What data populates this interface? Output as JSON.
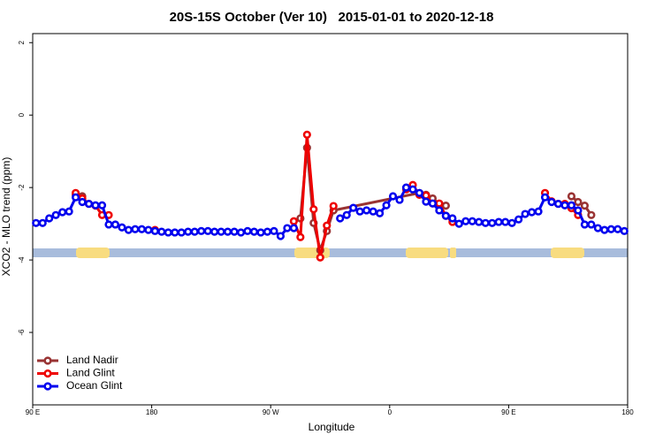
{
  "chart_data": {
    "type": "line",
    "title": "20S-15S October (Ver 10)   2015-01-01 to 2020-12-18",
    "xlabel": "Longitude",
    "ylabel": "XCO2 - MLO trend (ppm)",
    "xlim": [
      90,
      540
    ],
    "xticks": [
      {
        "value": 90,
        "label": "90 E"
      },
      {
        "value": 180,
        "label": "180"
      },
      {
        "value": 270,
        "label": "90 W"
      },
      {
        "value": 360,
        "label": "0"
      },
      {
        "value": 450,
        "label": "90 E"
      },
      {
        "value": 540,
        "label": "180"
      }
    ],
    "ylim": [
      -8,
      2.25
    ],
    "yticks": [
      -6,
      -4,
      -2,
      0,
      2
    ],
    "legend": "bottom-left",
    "series": [
      {
        "name": "Land Nadir",
        "color": "#993333",
        "x": [
          122.5,
          127.5,
          132.5,
          287.5,
          292.5,
          297.5,
          302.5,
          307.5,
          312.5,
          317.5,
          382.5,
          387.5,
          392.5,
          397.5,
          402.5,
          492.5,
          497.5,
          502.5,
          507.5,
          512.5
        ],
        "values": [
          -2.2,
          -2.24,
          null,
          null,
          -2.85,
          -0.9,
          -2.98,
          -3.73,
          -3.2,
          -2.63,
          -2.15,
          -2.2,
          -2.3,
          -2.45,
          -2.5,
          null,
          -2.24,
          -2.4,
          -2.5,
          -2.76
        ]
      },
      {
        "name": "Land Glint",
        "color": "#ee0000",
        "x": [
          122.5,
          127.5,
          132.5,
          137.5,
          142.5,
          147.5,
          152.5,
          182.5,
          187.5,
          287.5,
          292.5,
          297.5,
          302.5,
          307.5,
          312.5,
          317.5,
          322.5,
          372.5,
          377.5,
          382.5,
          387.5,
          392.5,
          397.5,
          402.5,
          407.5,
          412.5,
          477.5,
          482.5,
          487.5,
          492.5,
          497.5,
          502.5
        ],
        "values": [
          -2.15,
          -2.3,
          -2.45,
          -2.5,
          -2.76,
          -2.76,
          null,
          -3.17,
          null,
          -2.93,
          -3.37,
          -0.54,
          -2.6,
          -3.93,
          -3.05,
          -2.51,
          null,
          -2.05,
          -1.93,
          -2.2,
          -2.22,
          -2.44,
          -2.44,
          -2.78,
          -2.95,
          null,
          -2.15,
          -2.38,
          -2.45,
          -2.45,
          -2.57,
          -2.76
        ]
      },
      {
        "name": "Ocean Glint",
        "color": "#0000ee",
        "x": [
          92.5,
          97.5,
          102.5,
          107.5,
          112.5,
          117.5,
          122.5,
          127.5,
          132.5,
          137.5,
          142.5,
          147.5,
          152.5,
          157.5,
          162.5,
          167.5,
          172.5,
          177.5,
          182.5,
          187.5,
          192.5,
          197.5,
          202.5,
          207.5,
          212.5,
          217.5,
          222.5,
          227.5,
          232.5,
          237.5,
          242.5,
          247.5,
          252.5,
          257.5,
          262.5,
          267.5,
          272.5,
          277.5,
          282.5,
          287.5,
          292.5,
          297.5,
          302.5,
          307.5,
          312.5,
          317.5,
          322.5,
          327.5,
          332.5,
          337.5,
          342.5,
          347.5,
          352.5,
          357.5,
          362.5,
          367.5,
          372.5,
          377.5,
          382.5,
          387.5,
          392.5,
          397.5,
          402.5,
          407.5,
          412.5,
          417.5,
          422.5,
          427.5,
          432.5,
          437.5,
          442.5,
          447.5,
          452.5,
          457.5,
          462.5,
          467.5,
          472.5,
          477.5,
          482.5,
          487.5,
          492.5,
          497.5,
          502.5,
          507.5,
          512.5,
          517.5,
          522.5,
          527.5,
          532.5,
          537.5
        ],
        "values": [
          -2.98,
          -2.98,
          -2.85,
          -2.76,
          -2.68,
          -2.66,
          -2.27,
          -2.4,
          -2.45,
          -2.49,
          -2.49,
          -3.02,
          -3.02,
          -3.1,
          -3.17,
          -3.15,
          -3.15,
          -3.17,
          -3.2,
          -3.22,
          -3.24,
          -3.24,
          -3.24,
          -3.22,
          -3.22,
          -3.2,
          -3.2,
          -3.22,
          -3.22,
          -3.22,
          -3.22,
          -3.24,
          -3.2,
          -3.22,
          -3.24,
          -3.22,
          -3.2,
          -3.34,
          -3.12,
          -3.12,
          null,
          null,
          null,
          null,
          null,
          null,
          -2.85,
          -2.76,
          -2.56,
          -2.66,
          -2.63,
          -2.66,
          -2.71,
          -2.49,
          -2.24,
          -2.34,
          -2.0,
          -2.05,
          -2.15,
          -2.39,
          -2.44,
          -2.63,
          -2.78,
          -2.85,
          -3.0,
          -2.93,
          -2.93,
          -2.95,
          -2.98,
          -2.98,
          -2.95,
          -2.95,
          -2.98,
          -2.88,
          -2.73,
          -2.68,
          -2.66,
          -2.27,
          -2.4,
          -2.45,
          -2.49,
          -2.49,
          -2.63,
          -3.02,
          -3.02,
          -3.12,
          -3.17,
          -3.15,
          -3.15,
          -3.2
        ]
      }
    ]
  }
}
